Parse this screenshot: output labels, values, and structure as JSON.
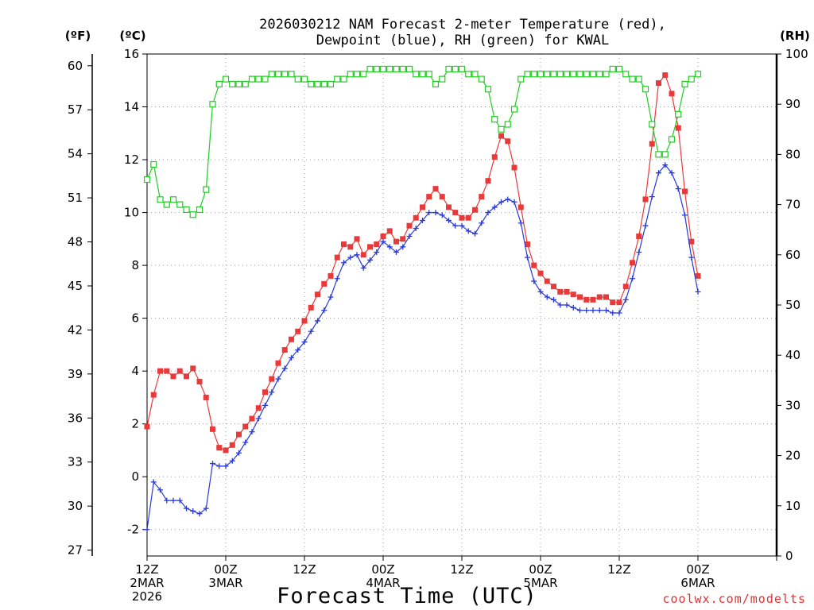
{
  "chart_data": {
    "type": "line",
    "title_line1": "2026030212 NAM Forecast 2-meter Temperature (red),",
    "title_line2": "Dewpoint (blue), RH (green) for KWAL",
    "xlabel": "Forecast Time (UTC)",
    "credit": "coolwx.com/modelts",
    "units": {
      "fahrenheit": "(ºF)",
      "celsius": "(ºC)",
      "rh": "(RH)"
    },
    "x_range_hours": [
      0,
      96
    ],
    "x_step_hours": 1,
    "x_ticks": [
      {
        "hour": 0,
        "lines": [
          "12Z",
          "2MAR",
          "2026"
        ]
      },
      {
        "hour": 12,
        "lines": [
          "00Z",
          "3MAR"
        ]
      },
      {
        "hour": 24,
        "lines": [
          "12Z"
        ]
      },
      {
        "hour": 36,
        "lines": [
          "00Z",
          "4MAR"
        ]
      },
      {
        "hour": 48,
        "lines": [
          "12Z"
        ]
      },
      {
        "hour": 60,
        "lines": [
          "00Z",
          "5MAR"
        ]
      },
      {
        "hour": 72,
        "lines": [
          "12Z"
        ]
      },
      {
        "hour": 84,
        "lines": [
          "00Z",
          "6MAR"
        ]
      }
    ],
    "y_celsius": {
      "min": -3,
      "max": 16,
      "ticks": [
        "-2",
        "0",
        "2",
        "4",
        "6",
        "8",
        "10",
        "12",
        "14",
        "16"
      ]
    },
    "y_fahrenheit": {
      "ticks": [
        "27",
        "30",
        "33",
        "36",
        "39",
        "42",
        "45",
        "48",
        "51",
        "54",
        "57",
        "60"
      ]
    },
    "y_rh": {
      "min": 0,
      "max": 100,
      "ticks": [
        "0",
        "10",
        "20",
        "30",
        "40",
        "50",
        "60",
        "70",
        "80",
        "90",
        "100"
      ]
    },
    "grid": true,
    "series": [
      {
        "name": "2-meter Temperature",
        "axis": "celsius",
        "color": "#e83a3a",
        "marker": "square-filled",
        "values": [
          1.9,
          3.1,
          4.0,
          4.0,
          3.8,
          4.0,
          3.8,
          4.1,
          3.6,
          3.0,
          1.8,
          1.1,
          1.0,
          1.2,
          1.6,
          1.9,
          2.2,
          2.6,
          3.2,
          3.7,
          4.3,
          4.8,
          5.2,
          5.5,
          5.9,
          6.4,
          6.9,
          7.3,
          7.6,
          8.3,
          8.8,
          8.7,
          9.0,
          8.4,
          8.7,
          8.8,
          9.1,
          9.3,
          8.9,
          9.0,
          9.5,
          9.8,
          10.2,
          10.6,
          10.9,
          10.6,
          10.2,
          10.0,
          9.8,
          9.8,
          10.1,
          10.6,
          11.2,
          12.1,
          12.9,
          12.7,
          11.7,
          10.2,
          8.8,
          8.0,
          7.7,
          7.4,
          7.2,
          7.0,
          7.0,
          6.9,
          6.8,
          6.7,
          6.7,
          6.8,
          6.8,
          6.6,
          6.6,
          7.2,
          8.1,
          9.1,
          10.5,
          12.6,
          14.9,
          15.2,
          14.5,
          13.2,
          10.8,
          8.9,
          7.6
        ]
      },
      {
        "name": "Dewpoint",
        "axis": "celsius",
        "color": "#2a3ad8",
        "marker": "plus",
        "values": [
          -2.0,
          -0.2,
          -0.5,
          -0.9,
          -0.9,
          -0.9,
          -1.2,
          -1.3,
          -1.4,
          -1.2,
          0.5,
          0.4,
          0.4,
          0.6,
          0.9,
          1.3,
          1.7,
          2.2,
          2.7,
          3.2,
          3.7,
          4.1,
          4.5,
          4.8,
          5.1,
          5.5,
          5.9,
          6.3,
          6.8,
          7.5,
          8.1,
          8.3,
          8.4,
          7.9,
          8.2,
          8.5,
          8.9,
          8.7,
          8.5,
          8.7,
          9.1,
          9.4,
          9.7,
          10.0,
          10.0,
          9.9,
          9.7,
          9.5,
          9.5,
          9.3,
          9.2,
          9.6,
          10.0,
          10.2,
          10.4,
          10.5,
          10.4,
          9.6,
          8.3,
          7.4,
          7.0,
          6.8,
          6.7,
          6.5,
          6.5,
          6.4,
          6.3,
          6.3,
          6.3,
          6.3,
          6.3,
          6.2,
          6.2,
          6.7,
          7.5,
          8.5,
          9.5,
          10.6,
          11.5,
          11.8,
          11.5,
          10.9,
          9.9,
          8.3,
          7.0
        ]
      },
      {
        "name": "RH",
        "axis": "rh",
        "color": "#22cc22",
        "marker": "square-open",
        "values": [
          75,
          78,
          71,
          70,
          71,
          70,
          69,
          68,
          69,
          73,
          90,
          94,
          95,
          94,
          94,
          94,
          95,
          95,
          95,
          96,
          96,
          96,
          96,
          95,
          95,
          94,
          94,
          94,
          94,
          95,
          95,
          96,
          96,
          96,
          97,
          97,
          97,
          97,
          97,
          97,
          97,
          96,
          96,
          96,
          94,
          95,
          97,
          97,
          97,
          96,
          96,
          95,
          93,
          87,
          85,
          86,
          89,
          95,
          96,
          96,
          96,
          96,
          96,
          96,
          96,
          96,
          96,
          96,
          96,
          96,
          96,
          97,
          97,
          96,
          95,
          95,
          93,
          86,
          80,
          80,
          83,
          88,
          94,
          95,
          96
        ]
      }
    ]
  }
}
